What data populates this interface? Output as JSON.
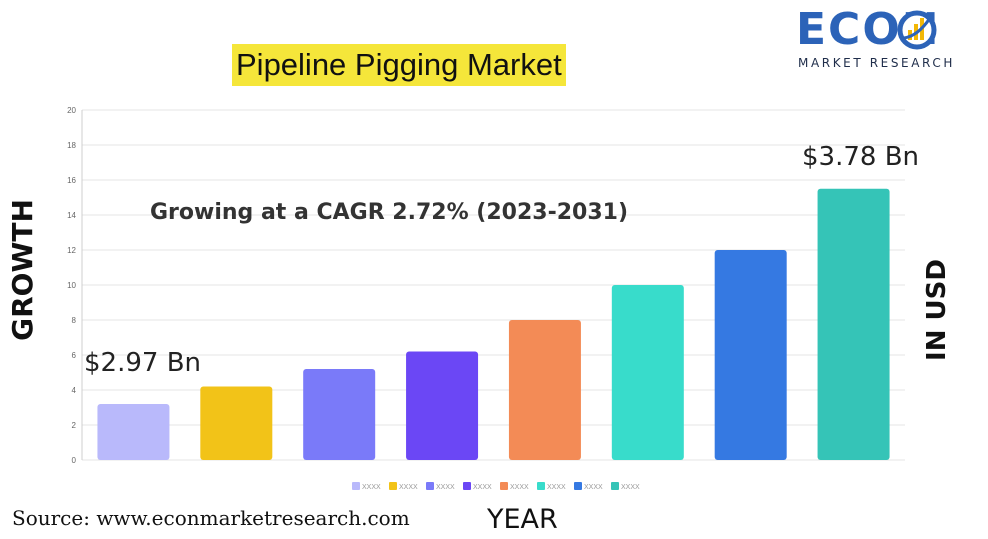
{
  "title": "Pipeline Pigging Market",
  "logo": {
    "word": "ECON",
    "sub": "MARKET RESEARCH",
    "primary_color": "#2c63b8",
    "accent_color": "#f2b705"
  },
  "annotations": {
    "cagr": "Growing at a CAGR 2.72% (2023-2031)",
    "start_value": "$2.97 Bn",
    "end_value": "$3.78 Bn"
  },
  "source": "Source: www.econmarketresearch.com",
  "chart_data": {
    "type": "bar",
    "title": "Pipeline Pigging Market",
    "xlabel": "YEAR",
    "ylabel": "GROWTH",
    "ylabel_right": "IN USD",
    "ylim": [
      0,
      20
    ],
    "yticks": [
      "0",
      "2",
      "4",
      "6",
      "8",
      "10",
      "12",
      "14",
      "16",
      "18",
      "20"
    ],
    "grid": true,
    "legend_position": "bottom",
    "categories": [
      "XXXX",
      "XXXX",
      "XXXX",
      "XXXX",
      "XXXX",
      "XXXX",
      "XXXX",
      "XXXX"
    ],
    "values": [
      3.2,
      4.2,
      5.2,
      6.2,
      8.0,
      10.0,
      12.0,
      15.5
    ],
    "colors": [
      "#b9b9fb",
      "#f2c318",
      "#7a7af9",
      "#6b47f5",
      "#f38b56",
      "#38dccb",
      "#3579e2",
      "#35c4b7"
    ]
  }
}
